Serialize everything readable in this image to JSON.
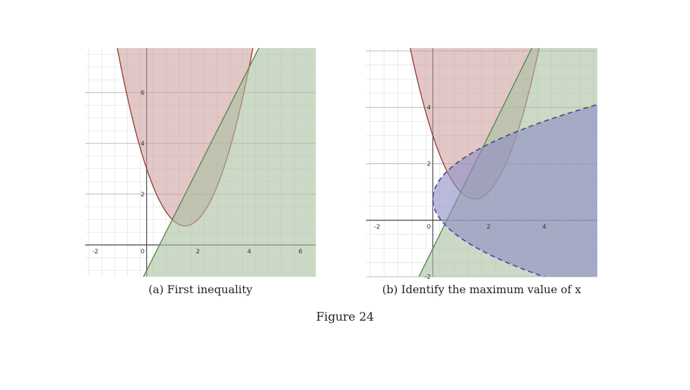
{
  "figure": {
    "label": "Figure 24"
  },
  "colors": {
    "region_1": "#c99a99",
    "region_2": "#a8c0a0",
    "region_3": "#8c8cc4",
    "curve_1": "#9a3a34",
    "curve_2": "#4f8a45",
    "curve_3": "#4a4aa0",
    "grid_major": "#b8b8b8",
    "grid_minor": "#e4e4e4",
    "axis": "#444444"
  },
  "panels": [
    {
      "id": "a",
      "caption": "(a) First inequality",
      "chart_data": {
        "type": "area",
        "xlim": [
          -2.4,
          6.6
        ],
        "ylim": [
          -1.25,
          7.75
        ],
        "x_ticks": [
          -2,
          0,
          2,
          4,
          6
        ],
        "y_ticks": [
          2,
          4,
          6
        ],
        "x_tick_labels": [
          "-2",
          "0",
          "2",
          "4",
          "6"
        ],
        "y_tick_labels": [
          "2",
          "4",
          "6"
        ],
        "origin_label": "0",
        "grid": true,
        "series": [
          {
            "kind": "parabola_above",
            "a": 1,
            "h": 1.5,
            "k": 0.75,
            "boundary": "solid"
          },
          {
            "kind": "line_below",
            "m": 2,
            "c": -1,
            "boundary": "solid"
          }
        ]
      }
    },
    {
      "id": "b",
      "caption": "(b) Identify the maximum value of x",
      "chart_data": {
        "type": "area",
        "xlim": [
          -2.4,
          5.9
        ],
        "ylim": [
          -2.0,
          6.1
        ],
        "x_ticks": [
          -2,
          0,
          2,
          4
        ],
        "y_ticks": [
          -2,
          2,
          4
        ],
        "x_tick_labels": [
          "-2",
          "0",
          "2",
          "4"
        ],
        "y_tick_labels": [
          "-2",
          "2",
          "4"
        ],
        "origin_label": "0",
        "grid": true,
        "series": [
          {
            "kind": "parabola_above",
            "a": 1,
            "h": 1.5,
            "k": 0.75,
            "boundary": "solid"
          },
          {
            "kind": "line_below",
            "m": 2,
            "c": -1,
            "boundary": "solid"
          },
          {
            "kind": "sideways_parabola_inside",
            "a": 1.9,
            "k": 0.75,
            "boundary": "dashed"
          }
        ]
      }
    }
  ]
}
